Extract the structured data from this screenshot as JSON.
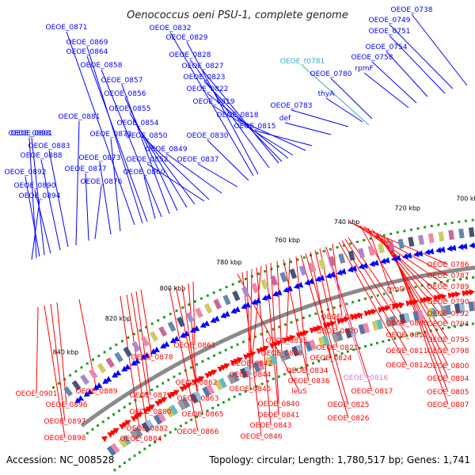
{
  "title": "Oenococcus oeni PSU-1, complete genome",
  "footer": {
    "accession": "Accession: NC_008528",
    "summary": "Topology: circular; Length: 1,780,517 bp; Genes: 1,741"
  },
  "colors": {
    "plus_strand": "#0000ff",
    "minus_strand": "#ff0000",
    "trna": "#33aacc",
    "pink_label": "#dd77cc",
    "backbone": "#8a8a8a",
    "kbp_tick": "#229922"
  },
  "kbp_marks": [
    "700 kbp",
    "720 kbp",
    "740 kbp",
    "760 kbp",
    "780 kbp",
    "800 kbp",
    "820 kbp",
    "840 kbp"
  ],
  "blue_labels": [
    "OEOE_0738",
    "OEOE_0749",
    "OEOE_0751",
    "OEOE_0754",
    "OEOE_0758",
    "rpmF",
    "OEOE_0780",
    "thyA",
    "OEOE_0783",
    "def",
    "OEOE_0815",
    "OEOE_0818",
    "OEOE_0819",
    "OEOE_0822",
    "OEOE_0823",
    "OEOE_0827",
    "OEOE_0828",
    "OEOE_0829",
    "OEOE_0832",
    "OEOE_0830",
    "OEOE_0837",
    "OEOE_0849",
    "OEOE_0850",
    "OEOE_0852",
    "OEOE_0854",
    "OEOE_0855",
    "OEOE_0856",
    "OEOE_0857",
    "OEOE_0858",
    "OEOE_0860",
    "OEOE_0864",
    "OEOE_0869",
    "OEOE_0871",
    "OEOE_0872",
    "OEOE_0873",
    "OEOE_0876",
    "OEOE_0877",
    "OEOE_0881",
    "OEOE_0883",
    "OEOE_0888",
    "OEOE_0890",
    "OEOE_0891",
    "OEOE_0892",
    "OEOE_0893",
    "OEOE_0894"
  ],
  "cyan_labels": [
    "OEOE_t0781"
  ],
  "red_labels": [
    "OEOE_0786",
    "OEOE_0787",
    "OEOE_0789",
    "trmD",
    "OEOE_0790",
    "rplS",
    "OEOE_0792",
    "OEOE_0794",
    "OEOE_0795",
    "OEOE_0798",
    "OEOE_0800",
    "OEOE_0804",
    "OEOE_0805",
    "OEOE_0807",
    "OEOE_0808",
    "OEOE_0810",
    "OEOE_0811",
    "OEOE_0812",
    "OEOE_0814",
    "OEOE_0817",
    "OEOE_0820",
    "OEOE_0821",
    "OEOE_0824",
    "OEOE_0825",
    "OEOE_0826",
    "OEOE_0834",
    "OEOE_0835",
    "OEOE_0836",
    "OEOE_0838",
    "OEOE_0840",
    "OEOE_0841",
    "OEOE_0842",
    "OEOE_0843",
    "OEOE_0844",
    "OEOE_0845",
    "OEOE_0846",
    "leuS",
    "OEOE_0861",
    "OEOE_0862",
    "OEOE_0863",
    "OEOE_0865",
    "OEOE_0866",
    "OEOE_0878",
    "OEOE_0879",
    "OEOE_0880",
    "OEOE_0882",
    "OEOE_0884",
    "OEOE_0889",
    "OEOE_0896",
    "OEOE_0897",
    "OEOE_0898",
    "OEOE_0901"
  ],
  "pink_labels": [
    "OEOE_t0816"
  ]
}
